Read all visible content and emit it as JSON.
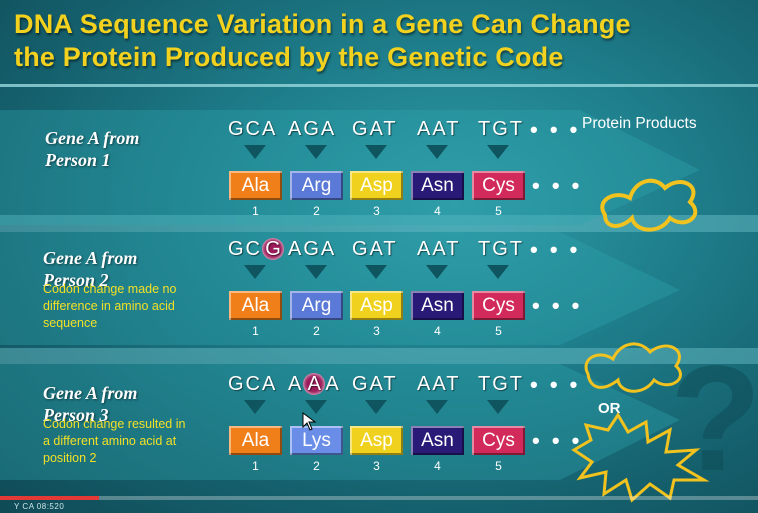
{
  "title": {
    "line1": "DNA Sequence Variation in a Gene Can Change",
    "line2": "the Protein Produced by the Genetic Code"
  },
  "protein_products_label": "Protein Products",
  "or_label": "OR",
  "dots": "• • •",
  "colors": {
    "title": "#f2d21f",
    "note": "#f2e026",
    "Ala": "#f07f1a",
    "Arg": "#5b79d6",
    "Lys": "#6a8ee8",
    "Asp": "#f0d21e",
    "Asn": "#2a1a78",
    "Cys": "#d22a5a",
    "mutation": "#9b1a5a",
    "protein_outline": "#f2c21f"
  },
  "rows": [
    {
      "person": "Gene A from\nPerson 1",
      "note": "",
      "codons": [
        {
          "pre": "GCA",
          "hl": "",
          "post": ""
        },
        {
          "pre": "AGA",
          "hl": "",
          "post": ""
        },
        {
          "pre": "GAT",
          "hl": "",
          "post": ""
        },
        {
          "pre": "AAT",
          "hl": "",
          "post": ""
        },
        {
          "pre": "TGT",
          "hl": "",
          "post": ""
        }
      ],
      "amino_acids": [
        "Ala",
        "Arg",
        "Asp",
        "Asn",
        "Cys"
      ],
      "positions": [
        "1",
        "2",
        "3",
        "4",
        "5"
      ]
    },
    {
      "person": "Gene A from\nPerson 2",
      "note": "Codon change made no\ndifference in amino acid\nsequence",
      "codons": [
        {
          "pre": "GC",
          "hl": "G",
          "post": ""
        },
        {
          "pre": "AGA",
          "hl": "",
          "post": ""
        },
        {
          "pre": "GAT",
          "hl": "",
          "post": ""
        },
        {
          "pre": "AAT",
          "hl": "",
          "post": ""
        },
        {
          "pre": "TGT",
          "hl": "",
          "post": ""
        }
      ],
      "amino_acids": [
        "Ala",
        "Arg",
        "Asp",
        "Asn",
        "Cys"
      ],
      "positions": [
        "1",
        "2",
        "3",
        "4",
        "5"
      ]
    },
    {
      "person": "Gene A from\nPerson 3",
      "note": "Codon change resulted in\na different amino acid at\nposition 2",
      "codons": [
        {
          "pre": "GCA",
          "hl": "",
          "post": ""
        },
        {
          "pre": "A",
          "hl": "A",
          "post": "A"
        },
        {
          "pre": "GAT",
          "hl": "",
          "post": ""
        },
        {
          "pre": "AAT",
          "hl": "",
          "post": ""
        },
        {
          "pre": "TGT",
          "hl": "",
          "post": ""
        }
      ],
      "amino_acids": [
        "Ala",
        "Lys",
        "Asp",
        "Asn",
        "Cys"
      ],
      "positions": [
        "1",
        "2",
        "3",
        "4",
        "5"
      ]
    }
  ],
  "progress": 0.13,
  "timestamp": "Y CA 08:520"
}
